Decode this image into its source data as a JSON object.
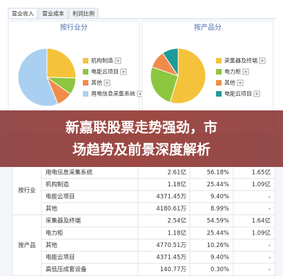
{
  "tabs": [
    "营业收入",
    "营业成本",
    "利润比例"
  ],
  "panels": [
    {
      "title": "按行业分",
      "slices": [
        {
          "label": "机构制造",
          "value": 25.44,
          "color": "#f5c33b"
        },
        {
          "label": "电能云项目",
          "value": 9.4,
          "color": "#8cc63f"
        },
        {
          "label": "其他",
          "value": 8.99,
          "color": "#f08c4a"
        },
        {
          "label": "用电信息采集系统",
          "value": 56.18,
          "color": "#a9d0f0"
        }
      ]
    },
    {
      "title": "按产品分",
      "slices": [
        {
          "label": "采集器及终端",
          "value": 54.59,
          "color": "#f5c33b"
        },
        {
          "label": "电力柜",
          "value": 25.44,
          "color": "#8cc63f"
        },
        {
          "label": "其他",
          "value": 10.26,
          "color": "#f08c4a"
        },
        {
          "label": "电能云项目",
          "value": 9.4,
          "color": "#1e9a9a"
        }
      ]
    }
  ],
  "banner": [
    "新嘉联股票走势强劲，市",
    "场趋势及前景深度解析"
  ],
  "table": {
    "groups": [
      {
        "name": "按行业",
        "rows": [
          [
            "用电信息采集系统",
            "2.61亿",
            "56.18%",
            "1.65亿"
          ],
          [
            "机构制造",
            "1.18亿",
            "25.44%",
            "1.09亿"
          ],
          [
            "电能云项目",
            "4371.45万",
            "9.40%",
            "-"
          ],
          [
            "其他",
            "4180.61万",
            "8.99%",
            "-"
          ]
        ]
      },
      {
        "name": "按产品",
        "rows": [
          [
            "采集器及终端",
            "2.54亿",
            "54.59%",
            "1.64亿"
          ],
          [
            "电力柜",
            "1.18亿",
            "25.44%",
            "1.09亿"
          ],
          [
            "其他",
            "4770.51万",
            "10.26%",
            "-"
          ],
          [
            "电能云项目",
            "4371.45万",
            "9.40%",
            "-"
          ],
          [
            "高低压成套设备",
            "140.77万",
            "0.30%",
            "-"
          ]
        ]
      }
    ]
  }
}
